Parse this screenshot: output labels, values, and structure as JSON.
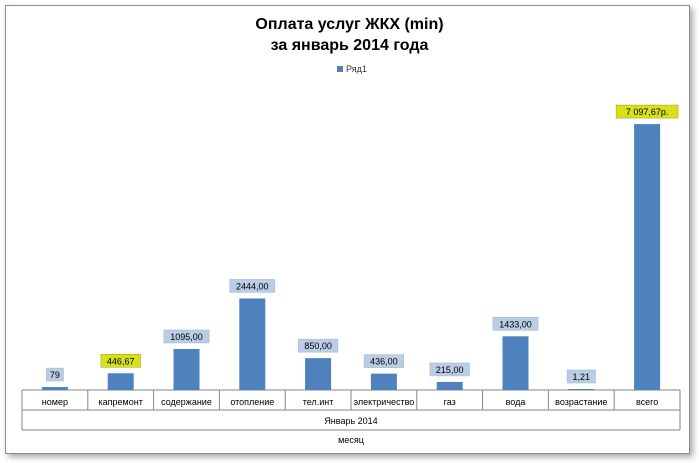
{
  "chart_data": {
    "type": "bar",
    "title_line1": "Оплата услуг ЖКХ (min)",
    "title_line2": "за январь 2014 года",
    "legend": [
      "Ряд1"
    ],
    "categories": [
      "номер",
      "капремонт",
      "содержание",
      "отопление",
      "тел.инт",
      "электричество",
      "газ",
      "вода",
      "возрастание",
      "всего"
    ],
    "group_label": "Январь 2014",
    "xlabel": "месяц",
    "series": [
      {
        "name": "Ряд1",
        "values": [
          79,
          446.67,
          1095,
          2444,
          850,
          436,
          215,
          1433,
          1.21,
          7097.67
        ]
      }
    ],
    "data_labels": [
      "79",
      "446,67",
      "1095,00",
      "2444,00",
      "850,00",
      "436,00",
      "215,00",
      "1433,00",
      "1,21",
      "7 097,67р."
    ],
    "highlighted_labels": [
      1,
      9
    ],
    "ylim": [
      0,
      7420
    ],
    "colors": {
      "bar": "#4f81bd",
      "label_bg": "#b9cde5",
      "label_highlight": "#d7e11a"
    }
  }
}
